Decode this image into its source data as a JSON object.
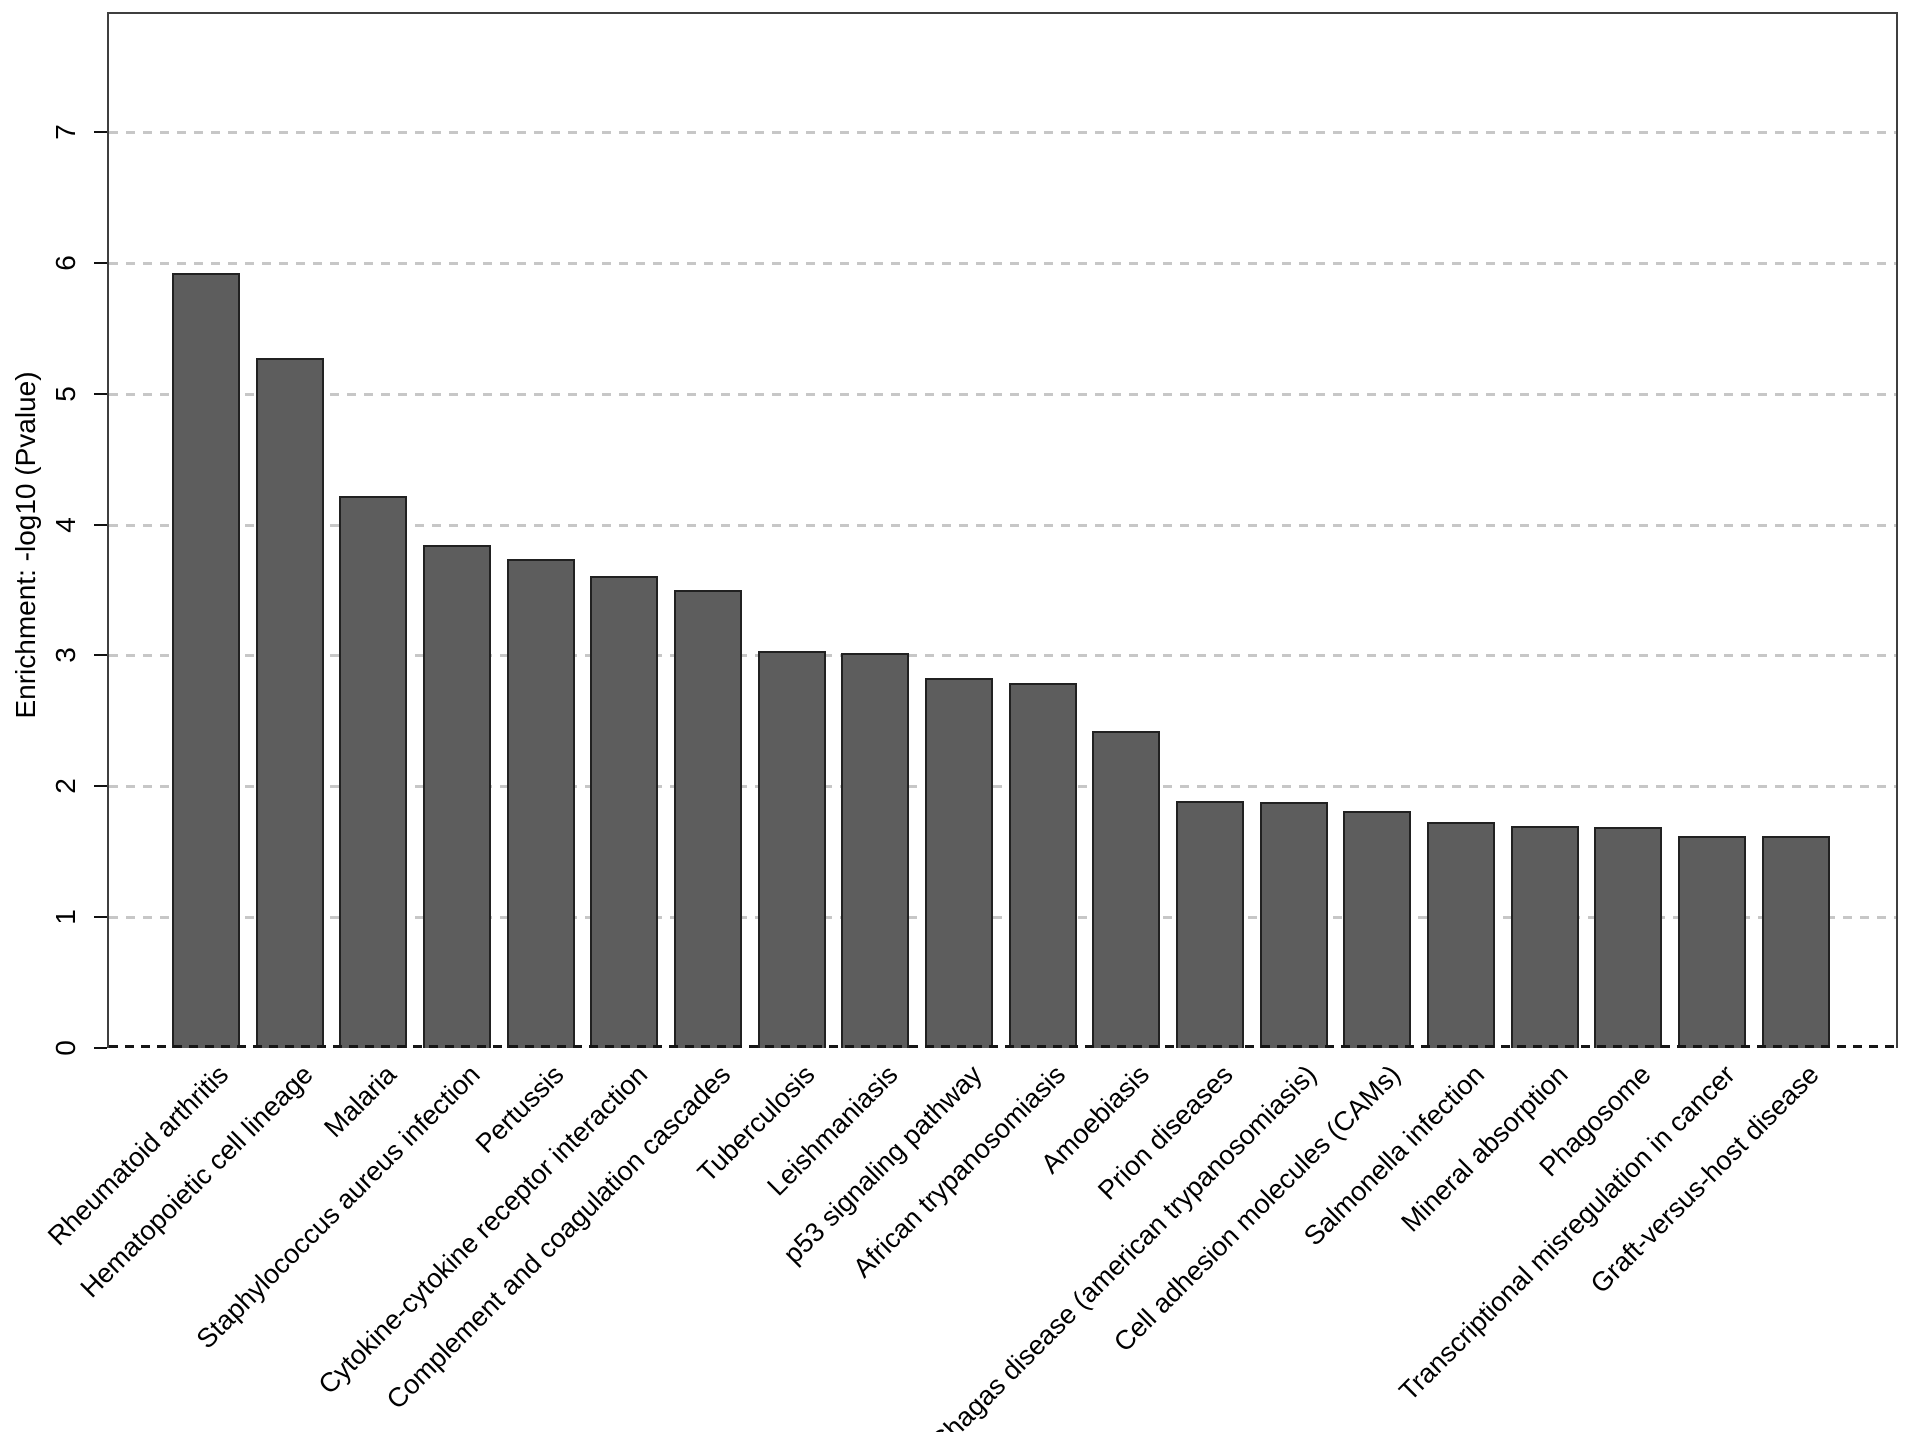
{
  "chart_data": {
    "type": "bar",
    "title": "",
    "xlabel": "",
    "ylabel": "Enrichment: -log10 (Pvalue)",
    "categories": [
      "Rheumatoid arthritis",
      "Hematopoietic cell lineage",
      "Malaria",
      "Staphylococcus aureus infection",
      "Pertussis",
      "Cytokine-cytokine receptor interaction",
      "Complement and coagulation cascades",
      "Tuberculosis",
      "Leishmaniasis",
      "p53 signaling pathway",
      "African trypanosomiasis",
      "Amoebiasis",
      "Prion diseases",
      "Chagas disease (american trypanosomiasis)",
      "Cell adhesion molecules (CAMs)",
      "Salmonella infection",
      "Mineral absorption",
      "Phagosome",
      "Transcriptional misregulation in cancer",
      "Graft-versus-host disease"
    ],
    "values": [
      5.92,
      5.27,
      4.22,
      3.84,
      3.74,
      3.61,
      3.5,
      3.03,
      3.02,
      2.83,
      2.79,
      2.42,
      1.89,
      1.88,
      1.81,
      1.73,
      1.7,
      1.69,
      1.62,
      1.62
    ],
    "yticks": [
      0,
      1,
      2,
      3,
      4,
      5,
      6,
      7
    ],
    "ylim": [
      0,
      7.92
    ],
    "grid": "horizontal dashed gray lines at integer ticks; dashed black line at 0",
    "legend_position": "none",
    "bar_color": "#5d5d5d",
    "bar_border_color": "#212121",
    "grid_color": "#c7c7c7",
    "zero_line_color": "#161616",
    "box_border_color": "#3f3f3f"
  }
}
